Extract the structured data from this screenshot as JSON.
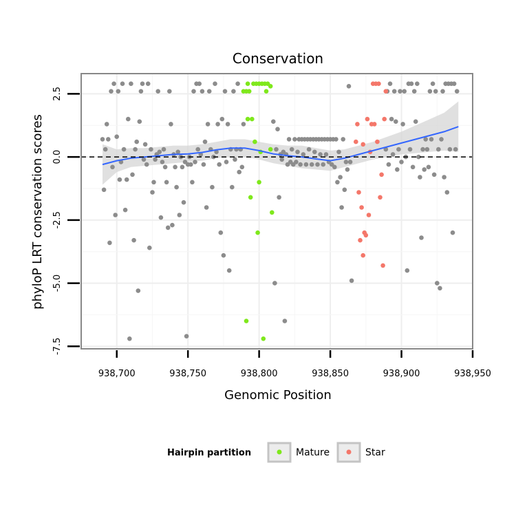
{
  "chart_data": {
    "type": "scatter",
    "title": "Conservation",
    "xlabel": "Genomic Position",
    "ylabel": "phyloP LRT conservation scores",
    "xlim": [
      938675,
      938950
    ],
    "ylim": [
      -7.6,
      3.3
    ],
    "x_ticks": [
      938700,
      938750,
      938800,
      938850,
      938900,
      938950
    ],
    "x_tick_labels": [
      "938,700",
      "938,750",
      "938,800",
      "938,850",
      "938,900",
      "938,950"
    ],
    "y_ticks": [
      -7.5,
      -5.0,
      -2.5,
      0.0,
      2.5
    ],
    "y_tick_labels": [
      "-7.5",
      "-5.0",
      "-2.5",
      "0.0",
      "2.5"
    ],
    "grid": true,
    "reference_line_y": 0,
    "legend": {
      "title": "Hairpin partition",
      "position": "bottom",
      "entries": [
        {
          "label": "Mature",
          "color": "#7FE81C"
        },
        {
          "label": "Star",
          "color": "#F4776A"
        }
      ]
    },
    "colors": {
      "other": "#8c8c8c",
      "mature": "#7FE81C",
      "star": "#F4776A",
      "smooth": "#3366FF",
      "ribbon": "#d6d6d6",
      "grid": "#eeeeee",
      "panel_border": "#888888"
    },
    "series": [
      {
        "group": "other",
        "points": [
          [
            938690,
            0.7
          ],
          [
            938691,
            -1.3
          ],
          [
            938692,
            0.3
          ],
          [
            938693,
            1.3
          ],
          [
            938694,
            0.7
          ],
          [
            938695,
            -3.4
          ],
          [
            938696,
            2.6
          ],
          [
            938697,
            -0.4
          ],
          [
            938698,
            2.9
          ],
          [
            938699,
            -2.3
          ],
          [
            938700,
            0.8
          ],
          [
            938701,
            2.6
          ],
          [
            938702,
            -0.9
          ],
          [
            938703,
            -0.2
          ],
          [
            938704,
            2.9
          ],
          [
            938705,
            0.3
          ],
          [
            938706,
            -2.1
          ],
          [
            938707,
            -0.9
          ],
          [
            938708,
            1.5
          ],
          [
            938709,
            -7.2
          ],
          [
            938710,
            2.9
          ],
          [
            938711,
            -0.7
          ],
          [
            938712,
            -3.3
          ],
          [
            938713,
            0.3
          ],
          [
            938714,
            0.6
          ],
          [
            938715,
            -5.3
          ],
          [
            938716,
            1.4
          ],
          [
            938717,
            2.6
          ],
          [
            938718,
            2.9
          ],
          [
            938719,
            -0.1
          ],
          [
            938720,
            0.5
          ],
          [
            938721,
            -0.3
          ],
          [
            938722,
            2.9
          ],
          [
            938723,
            -3.6
          ],
          [
            938724,
            0.3
          ],
          [
            938725,
            -1.4
          ],
          [
            938726,
            -1.0
          ],
          [
            938727,
            -0.1
          ],
          [
            938728,
            0.1
          ],
          [
            938729,
            2.6
          ],
          [
            938730,
            0.2
          ],
          [
            938731,
            -2.4
          ],
          [
            938732,
            -0.2
          ],
          [
            938733,
            0.3
          ],
          [
            938734,
            -0.4
          ],
          [
            938735,
            -1.0
          ],
          [
            938736,
            -2.8
          ],
          [
            938737,
            2.6
          ],
          [
            938738,
            1.3
          ],
          [
            938739,
            -2.7
          ],
          [
            938740,
            0.1
          ],
          [
            938741,
            -0.4
          ],
          [
            938742,
            -1.2
          ],
          [
            938743,
            0.2
          ],
          [
            938744,
            -2.3
          ],
          [
            938745,
            0.0
          ],
          [
            938746,
            -0.4
          ],
          [
            938747,
            -1.8
          ],
          [
            938748,
            -0.2
          ],
          [
            938749,
            -7.1
          ],
          [
            938750,
            -0.3
          ],
          [
            938751,
            0.0
          ],
          [
            938752,
            -0.3
          ],
          [
            938753,
            -1.0
          ],
          [
            938754,
            2.6
          ],
          [
            938755,
            -0.2
          ],
          [
            938756,
            2.9
          ],
          [
            938757,
            0.3
          ],
          [
            938758,
            2.9
          ],
          [
            938759,
            0.1
          ],
          [
            938760,
            2.6
          ],
          [
            938761,
            -0.3
          ],
          [
            938762,
            0.6
          ],
          [
            938763,
            -2.0
          ],
          [
            938764,
            1.3
          ],
          [
            938765,
            2.6
          ],
          [
            938766,
            0.3
          ],
          [
            938767,
            -1.2
          ],
          [
            938768,
            0.0
          ],
          [
            938769,
            2.9
          ],
          [
            938770,
            0.2
          ],
          [
            938771,
            1.3
          ],
          [
            938772,
            -0.3
          ],
          [
            938773,
            -3.0
          ],
          [
            938774,
            1.5
          ],
          [
            938775,
            -3.9
          ],
          [
            938776,
            2.6
          ],
          [
            938777,
            -0.2
          ],
          [
            938778,
            1.3
          ],
          [
            938779,
            -4.5
          ],
          [
            938780,
            0.3
          ],
          [
            938781,
            -1.2
          ],
          [
            938782,
            2.6
          ],
          [
            938783,
            -0.1
          ],
          [
            938784,
            0.3
          ],
          [
            938785,
            2.9
          ],
          [
            938786,
            -0.6
          ],
          [
            938787,
            0.3
          ],
          [
            938788,
            -0.4
          ],
          [
            938789,
            1.3
          ],
          [
            938810,
            1.4
          ],
          [
            938811,
            -5.0
          ],
          [
            938812,
            0.3
          ],
          [
            938813,
            1.1
          ],
          [
            938814,
            -1.6
          ],
          [
            938815,
            0.1
          ],
          [
            938816,
            -0.1
          ],
          [
            938817,
            0.2
          ],
          [
            938818,
            -6.5
          ],
          [
            938819,
            0.1
          ],
          [
            938820,
            -0.3
          ],
          [
            938821,
            0.7
          ],
          [
            938822,
            -0.2
          ],
          [
            938823,
            0.3
          ],
          [
            938824,
            -0.3
          ],
          [
            938825,
            0.7
          ],
          [
            938826,
            -0.2
          ],
          [
            938827,
            0.2
          ],
          [
            938828,
            0.7
          ],
          [
            938829,
            -0.3
          ],
          [
            938830,
            0.7
          ],
          [
            938831,
            0.1
          ],
          [
            938832,
            0.7
          ],
          [
            938833,
            -0.3
          ],
          [
            938834,
            0.7
          ],
          [
            938835,
            0.3
          ],
          [
            938836,
            0.7
          ],
          [
            938837,
            -0.3
          ],
          [
            938838,
            0.7
          ],
          [
            938839,
            0.2
          ],
          [
            938840,
            0.7
          ],
          [
            938841,
            -0.3
          ],
          [
            938842,
            0.7
          ],
          [
            938843,
            0.1
          ],
          [
            938844,
            0.7
          ],
          [
            938845,
            -0.3
          ],
          [
            938846,
            0.7
          ],
          [
            938847,
            0.1
          ],
          [
            938848,
            0.7
          ],
          [
            938849,
            -0.2
          ],
          [
            938850,
            0.7
          ],
          [
            938851,
            -0.3
          ],
          [
            938852,
            0.7
          ],
          [
            938853,
            -0.4
          ],
          [
            938854,
            0.7
          ],
          [
            938855,
            -1.0
          ],
          [
            938856,
            0.2
          ],
          [
            938857,
            -0.8
          ],
          [
            938858,
            -2.0
          ],
          [
            938859,
            0.7
          ],
          [
            938860,
            -1.3
          ],
          [
            938861,
            -0.2
          ],
          [
            938862,
            -0.5
          ],
          [
            938863,
            2.8
          ],
          [
            938864,
            -0.2
          ],
          [
            938865,
            -4.9
          ],
          [
            938889,
            0.3
          ],
          [
            938890,
            2.6
          ],
          [
            938891,
            -0.3
          ],
          [
            938892,
            2.9
          ],
          [
            938893,
            1.5
          ],
          [
            938894,
            0.1
          ],
          [
            938895,
            2.6
          ],
          [
            938896,
            1.4
          ],
          [
            938897,
            -0.5
          ],
          [
            938898,
            0.3
          ],
          [
            938899,
            2.6
          ],
          [
            938900,
            -0.2
          ],
          [
            938901,
            1.3
          ],
          [
            938902,
            2.6
          ],
          [
            938903,
            0.0
          ],
          [
            938904,
            -4.5
          ],
          [
            938905,
            2.9
          ],
          [
            938906,
            0.3
          ],
          [
            938907,
            2.9
          ],
          [
            938908,
            -0.4
          ],
          [
            938909,
            2.6
          ],
          [
            938910,
            1.4
          ],
          [
            938911,
            2.9
          ],
          [
            938912,
            0.0
          ],
          [
            938913,
            -0.8
          ],
          [
            938914,
            -3.2
          ],
          [
            938915,
            0.3
          ],
          [
            938916,
            -0.5
          ],
          [
            938917,
            0.7
          ],
          [
            938918,
            0.3
          ],
          [
            938919,
            -0.4
          ],
          [
            938920,
            2.6
          ],
          [
            938921,
            0.7
          ],
          [
            938922,
            2.9
          ],
          [
            938923,
            -0.7
          ],
          [
            938924,
            2.6
          ],
          [
            938925,
            -5.0
          ],
          [
            938926,
            0.3
          ],
          [
            938927,
            -5.2
          ],
          [
            938928,
            0.7
          ],
          [
            938929,
            2.6
          ],
          [
            938930,
            -0.8
          ],
          [
            938931,
            2.9
          ],
          [
            938932,
            -1.4
          ],
          [
            938933,
            2.9
          ],
          [
            938934,
            0.3
          ],
          [
            938935,
            2.9
          ],
          [
            938936,
            -3.0
          ],
          [
            938937,
            2.9
          ],
          [
            938938,
            0.3
          ],
          [
            938939,
            2.6
          ]
        ]
      },
      {
        "group": "mature",
        "points": [
          [
            938789,
            2.6
          ],
          [
            938791,
            2.6
          ],
          [
            938791,
            -6.5
          ],
          [
            938792,
            1.5
          ],
          [
            938792,
            2.9
          ],
          [
            938793,
            2.6
          ],
          [
            938794,
            -1.6
          ],
          [
            938795,
            1.5
          ],
          [
            938796,
            2.9
          ],
          [
            938797,
            0.6
          ],
          [
            938798,
            2.9
          ],
          [
            938799,
            -3.0
          ],
          [
            938800,
            -1.0
          ],
          [
            938800,
            2.9
          ],
          [
            938801,
            0.2
          ],
          [
            938802,
            2.9
          ],
          [
            938803,
            -7.2
          ],
          [
            938804,
            2.9
          ],
          [
            938805,
            2.6
          ],
          [
            938806,
            2.9
          ],
          [
            938808,
            0.3
          ],
          [
            938808,
            2.8
          ],
          [
            938809,
            -2.2
          ]
        ]
      },
      {
        "group": "star",
        "points": [
          [
            938868,
            0.6
          ],
          [
            938869,
            1.3
          ],
          [
            938870,
            -1.4
          ],
          [
            938871,
            -3.3
          ],
          [
            938872,
            -2.0
          ],
          [
            938873,
            -3.9
          ],
          [
            938873,
            0.5
          ],
          [
            938874,
            -3.0
          ],
          [
            938875,
            -3.1
          ],
          [
            938876,
            1.5
          ],
          [
            938877,
            -2.3
          ],
          [
            938878,
            0.2
          ],
          [
            938879,
            1.3
          ],
          [
            938880,
            2.9
          ],
          [
            938881,
            1.3
          ],
          [
            938882,
            2.9
          ],
          [
            938883,
            0.6
          ],
          [
            938884,
            2.9
          ],
          [
            938885,
            -1.6
          ],
          [
            938886,
            -0.7
          ],
          [
            938887,
            -4.3
          ],
          [
            938888,
            1.5
          ],
          [
            938889,
            2.6
          ]
        ]
      }
    ],
    "smooth": {
      "x": [
        938690,
        938700,
        938710,
        938720,
        938730,
        938740,
        938750,
        938760,
        938770,
        938780,
        938790,
        938800,
        938810,
        938820,
        938830,
        938840,
        938850,
        938860,
        938870,
        938880,
        938890,
        938900,
        938910,
        938920,
        938930,
        938940
      ],
      "y": [
        -0.3,
        -0.15,
        -0.05,
        0.0,
        0.05,
        0.1,
        0.12,
        0.18,
        0.28,
        0.35,
        0.35,
        0.25,
        0.12,
        0.05,
        0.0,
        -0.08,
        -0.15,
        -0.05,
        0.1,
        0.25,
        0.4,
        0.55,
        0.7,
        0.85,
        1.0,
        1.2
      ],
      "lower": [
        -1.1,
        -0.6,
        -0.4,
        -0.35,
        -0.3,
        -0.25,
        -0.2,
        -0.15,
        -0.05,
        0.0,
        0.0,
        -0.1,
        -0.25,
        -0.35,
        -0.45,
        -0.5,
        -0.55,
        -0.4,
        -0.25,
        -0.1,
        0.0,
        0.1,
        0.15,
        0.2,
        0.25,
        0.2
      ],
      "upper": [
        0.5,
        0.3,
        0.35,
        0.35,
        0.4,
        0.45,
        0.45,
        0.5,
        0.6,
        0.7,
        0.7,
        0.6,
        0.5,
        0.45,
        0.45,
        0.35,
        0.25,
        0.3,
        0.45,
        0.6,
        0.8,
        1.0,
        1.25,
        1.5,
        1.75,
        2.2
      ]
    }
  }
}
